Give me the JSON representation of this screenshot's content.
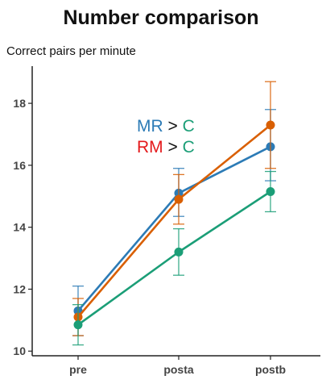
{
  "chart_data": {
    "type": "line",
    "title": "Number comparison",
    "ylabel": "Correct pairs per minute",
    "xlabel": "",
    "categories": [
      "pre",
      "posta",
      "postb"
    ],
    "ylim": [
      9.85,
      19.2
    ],
    "yticks": [
      10,
      12,
      14,
      16,
      18
    ],
    "grid": false,
    "legend": "none",
    "series": [
      {
        "key": "MR",
        "color": "#2c7bb6",
        "values": [
          11.3,
          15.1,
          16.6
        ],
        "err_low": [
          10.5,
          14.35,
          15.5
        ],
        "err_high": [
          12.1,
          15.9,
          17.8
        ]
      },
      {
        "key": "RM",
        "color": "#d95f02",
        "values": [
          11.1,
          14.9,
          17.3
        ],
        "err_low": [
          10.5,
          14.1,
          15.9
        ],
        "err_high": [
          11.7,
          15.7,
          18.7
        ]
      },
      {
        "key": "C",
        "color": "#1b9e77",
        "values": [
          10.85,
          13.2,
          15.15
        ],
        "err_low": [
          10.2,
          12.45,
          14.5
        ],
        "err_high": [
          11.5,
          13.95,
          15.8
        ]
      }
    ],
    "annotations": [
      {
        "parts": [
          {
            "text": "MR",
            "color": "#2c7bb6"
          },
          {
            "text": " > ",
            "color": "#111111"
          },
          {
            "text": "C",
            "color": "#1b9e77"
          }
        ]
      },
      {
        "parts": [
          {
            "text": "RM",
            "color": "#e41a1c"
          },
          {
            "text": " > ",
            "color": "#111111"
          },
          {
            "text": "C",
            "color": "#1b9e77"
          }
        ]
      }
    ]
  }
}
